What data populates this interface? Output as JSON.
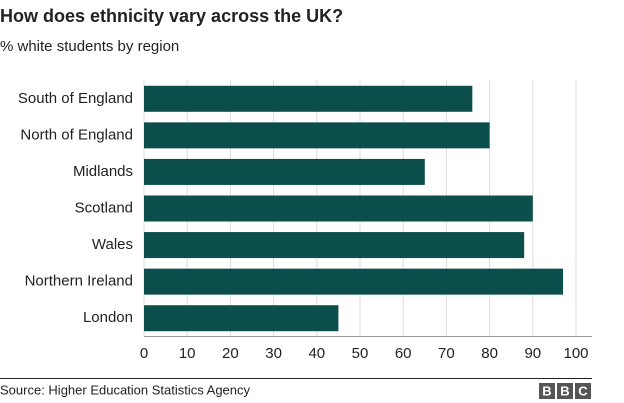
{
  "chart_data": {
    "type": "bar",
    "orientation": "horizontal",
    "title": "How does ethnicity vary across the UK?",
    "subtitle": "% white students by region",
    "categories": [
      "South of England",
      "North of England",
      "Midlands",
      "Scotland",
      "Wales",
      "Northern Ireland",
      "London"
    ],
    "values": [
      76,
      80,
      65,
      90,
      88,
      97,
      45
    ],
    "color": "#0b4e4c",
    "xlim": [
      0,
      100
    ],
    "xticks": [
      0,
      10,
      20,
      30,
      40,
      50,
      60,
      70,
      80,
      90,
      100
    ],
    "grid": true,
    "source": "Source: Higher Education Statistics Agency",
    "logo": [
      "B",
      "B",
      "C"
    ]
  }
}
